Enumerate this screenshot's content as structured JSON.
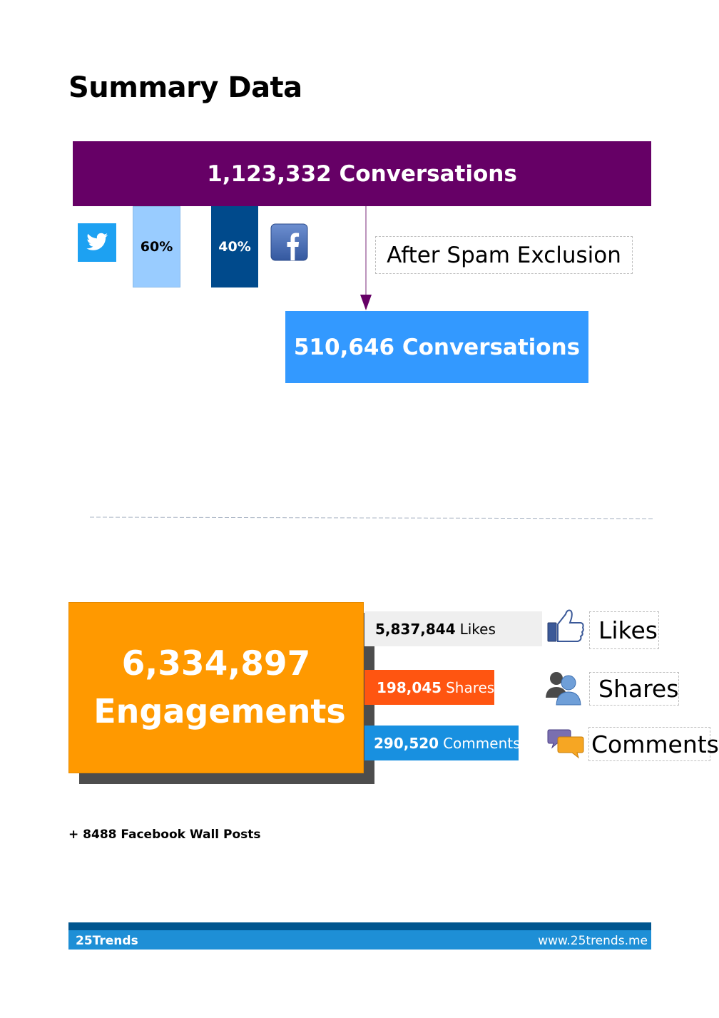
{
  "title": "Summary Data",
  "conversations": {
    "total_label": "1,123,332 Conversations",
    "twitter_share": "60%",
    "facebook_share": "40%",
    "filter_label": "After Spam Exclusion",
    "filtered_label": "510,646 Conversations"
  },
  "engagements": {
    "total": "6,334,897",
    "label": "Engagements",
    "breakdown": [
      {
        "value": "5,837,844",
        "unit": "Likes",
        "legend": "Likes",
        "icon": "thumbs-up-icon"
      },
      {
        "value": "198,045",
        "unit": "Shares",
        "legend": "Shares",
        "icon": "people-icon"
      },
      {
        "value": "290,520",
        "unit": "Comments",
        "legend": "Comments",
        "icon": "speech-bubbles-icon"
      }
    ]
  },
  "wall_posts": "+ 8488 Facebook Wall Posts",
  "footer": {
    "brand": "25Trends",
    "url": "www.25trends.me"
  },
  "colors": {
    "total_bar": "#660066",
    "filtered_bar": "#3399ff",
    "twitter": "#99ccff",
    "facebook": "#004a8c",
    "engagements": "#ff9900",
    "shares": "#ff5511",
    "comments": "#1890e0",
    "footer": "#1e8fd6"
  }
}
